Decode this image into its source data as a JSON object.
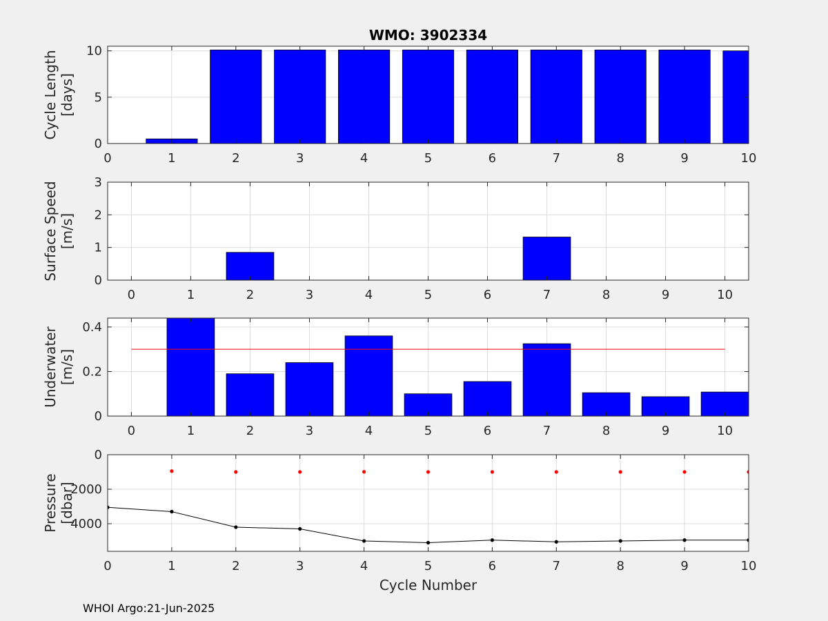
{
  "footer": "WHOI Argo:21-Jun-2025",
  "chart_data": [
    {
      "type": "bar",
      "title": "WMO: 3902334",
      "ylabel": [
        "Cycle Length",
        "[days]"
      ],
      "xlabel": "",
      "xlim": [
        0,
        10
      ],
      "ylim": [
        0,
        10.5
      ],
      "xticks": [
        0,
        1,
        2,
        3,
        4,
        5,
        6,
        7,
        8,
        9,
        10
      ],
      "yticks": [
        0,
        5,
        10
      ],
      "grid": true,
      "categories": [
        1,
        2,
        3,
        4,
        5,
        6,
        7,
        8,
        9,
        10
      ],
      "values": [
        0.5,
        10.1,
        10.1,
        10.1,
        10.1,
        10.1,
        10.1,
        10.1,
        10.1,
        10.0
      ],
      "colors": {
        "bar": "#0000ff"
      }
    },
    {
      "type": "bar",
      "title": "",
      "ylabel": [
        "Surface Speed",
        "[m/s]"
      ],
      "xlabel": "",
      "xlim": [
        -0.4,
        10.4
      ],
      "ylim": [
        0,
        3
      ],
      "xticks": [
        0,
        1,
        2,
        3,
        4,
        5,
        6,
        7,
        8,
        9,
        10
      ],
      "yticks": [
        0,
        1,
        2,
        3
      ],
      "grid": true,
      "categories": [
        0,
        1,
        2,
        3,
        4,
        5,
        6,
        7,
        8,
        9,
        10
      ],
      "values": [
        0,
        0,
        0.85,
        0,
        0,
        0,
        0,
        1.32,
        0,
        0,
        0
      ],
      "colors": {
        "bar": "#0000ff"
      }
    },
    {
      "type": "bar",
      "title": "",
      "ylabel": [
        "Underwater",
        "[m/s]"
      ],
      "xlabel": "",
      "xlim": [
        -0.4,
        10.4
      ],
      "ylim": [
        0,
        0.44
      ],
      "xticks": [
        0,
        1,
        2,
        3,
        4,
        5,
        6,
        7,
        8,
        9,
        10
      ],
      "yticks": [
        0,
        0.2,
        0.4
      ],
      "grid": true,
      "categories": [
        0,
        1,
        2,
        3,
        4,
        5,
        6,
        7,
        8,
        9,
        10
      ],
      "values": [
        0,
        0.45,
        0.19,
        0.24,
        0.36,
        0.1,
        0.155,
        0.325,
        0.105,
        0.087,
        0.108
      ],
      "reference_line": {
        "value": 0.3,
        "x": [
          0,
          10
        ],
        "color": "#ff0000"
      },
      "colors": {
        "bar": "#0000ff"
      }
    },
    {
      "type": "line",
      "title": "",
      "ylabel": [
        "Pressure",
        "[dbar]"
      ],
      "xlabel": "Cycle Number",
      "xlim": [
        0,
        10
      ],
      "ylim": [
        5600,
        0
      ],
      "y_reversed": true,
      "xticks": [
        0,
        1,
        2,
        3,
        4,
        5,
        6,
        7,
        8,
        9,
        10
      ],
      "yticks": [
        0,
        2000,
        4000
      ],
      "grid": true,
      "series": [
        {
          "style": "points",
          "color": "#ff0000",
          "x": [
            1,
            2,
            3,
            4,
            5,
            6,
            7,
            8,
            9,
            10
          ],
          "y": [
            950,
            1000,
            1000,
            990,
            1000,
            1000,
            1000,
            1000,
            1000,
            1000
          ]
        },
        {
          "style": "line-markers",
          "color": "#000000",
          "x": [
            0,
            1,
            2,
            3,
            4,
            5,
            6,
            7,
            8,
            9,
            10
          ],
          "y": [
            3050,
            3300,
            4200,
            4300,
            5000,
            5100,
            4950,
            5050,
            5000,
            4950,
            4950
          ]
        }
      ]
    }
  ]
}
